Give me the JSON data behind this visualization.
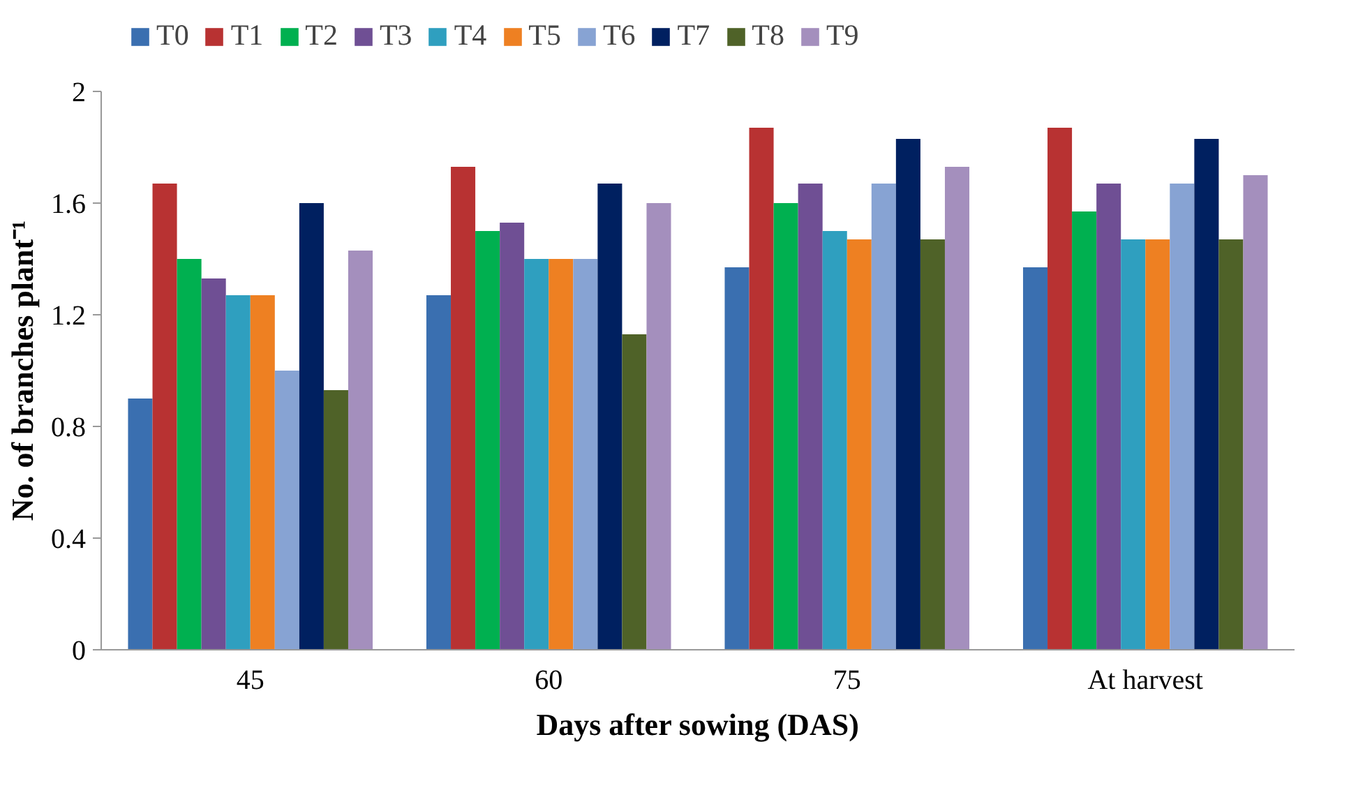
{
  "chart_data": {
    "type": "bar",
    "xlabel": "Days after sowing (DAS)",
    "ylabel": "No. of branches plant⁻¹",
    "categories": [
      "45",
      "60",
      "75",
      "At harvest"
    ],
    "ylim": [
      0,
      2
    ],
    "yticks": [
      0,
      0.4,
      0.8,
      1.2,
      1.6,
      2
    ],
    "grid": false,
    "legend": "top",
    "series": [
      {
        "name": "T0",
        "color": "#3a6fb0",
        "values": [
          0.9,
          1.27,
          1.37,
          1.37
        ]
      },
      {
        "name": "T1",
        "color": "#b83232",
        "values": [
          1.67,
          1.73,
          1.87,
          1.87
        ]
      },
      {
        "name": "T2",
        "color": "#00b050",
        "values": [
          1.4,
          1.5,
          1.6,
          1.57
        ]
      },
      {
        "name": "T3",
        "color": "#6f4f94",
        "values": [
          1.33,
          1.53,
          1.67,
          1.67
        ]
      },
      {
        "name": "T4",
        "color": "#2f9fbf",
        "values": [
          1.27,
          1.4,
          1.5,
          1.47
        ]
      },
      {
        "name": "T5",
        "color": "#ee8022",
        "values": [
          1.27,
          1.4,
          1.47,
          1.47
        ]
      },
      {
        "name": "T6",
        "color": "#87a3d3",
        "values": [
          1.0,
          1.4,
          1.67,
          1.67
        ]
      },
      {
        "name": "T7",
        "color": "#002060",
        "values": [
          1.6,
          1.67,
          1.83,
          1.83
        ]
      },
      {
        "name": "T8",
        "color": "#4f6228",
        "values": [
          0.93,
          1.13,
          1.47,
          1.47
        ]
      },
      {
        "name": "T9",
        "color": "#a48fbd",
        "values": [
          1.43,
          1.6,
          1.73,
          1.7
        ]
      }
    ]
  }
}
